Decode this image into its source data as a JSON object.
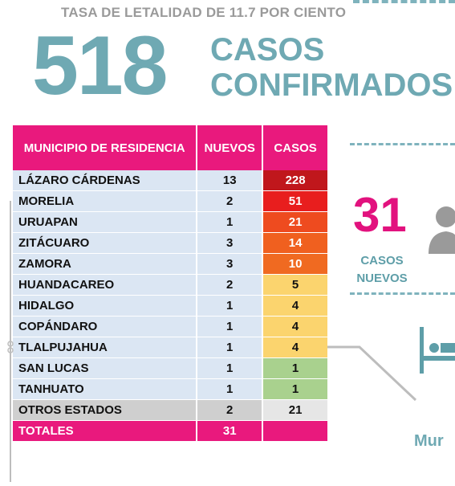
{
  "header": {
    "lethality": "TASA DE LETALIDAD DE 11.7 POR CIENTO",
    "confirmed_number": "518",
    "confirmed_line1": "CASOS",
    "confirmed_line2": "CONFIRMADOS"
  },
  "table": {
    "headers": {
      "municipio": "MUNICIPIO DE RESIDENCIA",
      "nuevos": "NUEVOS",
      "casos": "CASOS"
    },
    "rows": [
      {
        "municipio": "LÁZARO CÁRDENAS",
        "nuevos": "13",
        "casos": "228",
        "color": "#c0171c",
        "text_color": "#ffffff"
      },
      {
        "municipio": "MORELIA",
        "nuevos": "2",
        "casos": "51",
        "color": "#e81e1e",
        "text_color": "#ffffff"
      },
      {
        "municipio": "URUAPAN",
        "nuevos": "1",
        "casos": "21",
        "color": "#ee4b1f",
        "text_color": "#ffffff"
      },
      {
        "municipio": "ZITÁCUARO",
        "nuevos": "3",
        "casos": "14",
        "color": "#f0601f",
        "text_color": "#ffffff"
      },
      {
        "municipio": "ZAMORA",
        "nuevos": "3",
        "casos": "10",
        "color": "#f06a21",
        "text_color": "#ffffff"
      },
      {
        "municipio": "HUANDACAREO",
        "nuevos": "2",
        "casos": "5",
        "color": "#fbd46e",
        "text_color": "#111111"
      },
      {
        "municipio": "HIDALGO",
        "nuevos": "1",
        "casos": "4",
        "color": "#fbd46e",
        "text_color": "#111111"
      },
      {
        "municipio": "COPÁNDARO",
        "nuevos": "1",
        "casos": "4",
        "color": "#fbd46e",
        "text_color": "#111111"
      },
      {
        "municipio": "TLALPUJAHUA",
        "nuevos": "1",
        "casos": "4",
        "color": "#fbd46e",
        "text_color": "#111111"
      },
      {
        "municipio": "SAN LUCAS",
        "nuevos": "1",
        "casos": "1",
        "color": "#a9d18e",
        "text_color": "#111111"
      },
      {
        "municipio": "TANHUATO",
        "nuevos": "1",
        "casos": "1",
        "color": "#a9d18e",
        "text_color": "#111111"
      }
    ],
    "otros": {
      "municipio": "OTROS ESTADOS",
      "nuevos": "2",
      "casos": "21"
    },
    "totals": {
      "municipio": "TOTALES",
      "nuevos": "31",
      "casos": ""
    }
  },
  "side": {
    "new_cases_number": "31",
    "new_cases_line1": "CASOS",
    "new_cases_line2": "NUEVOS",
    "partial_text": "Mur"
  },
  "colors": {
    "accent_pink": "#e9197d",
    "teal": "#6fa9b3",
    "row_blue": "#dbe6f3"
  },
  "icons": [
    "person-icon",
    "hospital-bed-icon"
  ]
}
